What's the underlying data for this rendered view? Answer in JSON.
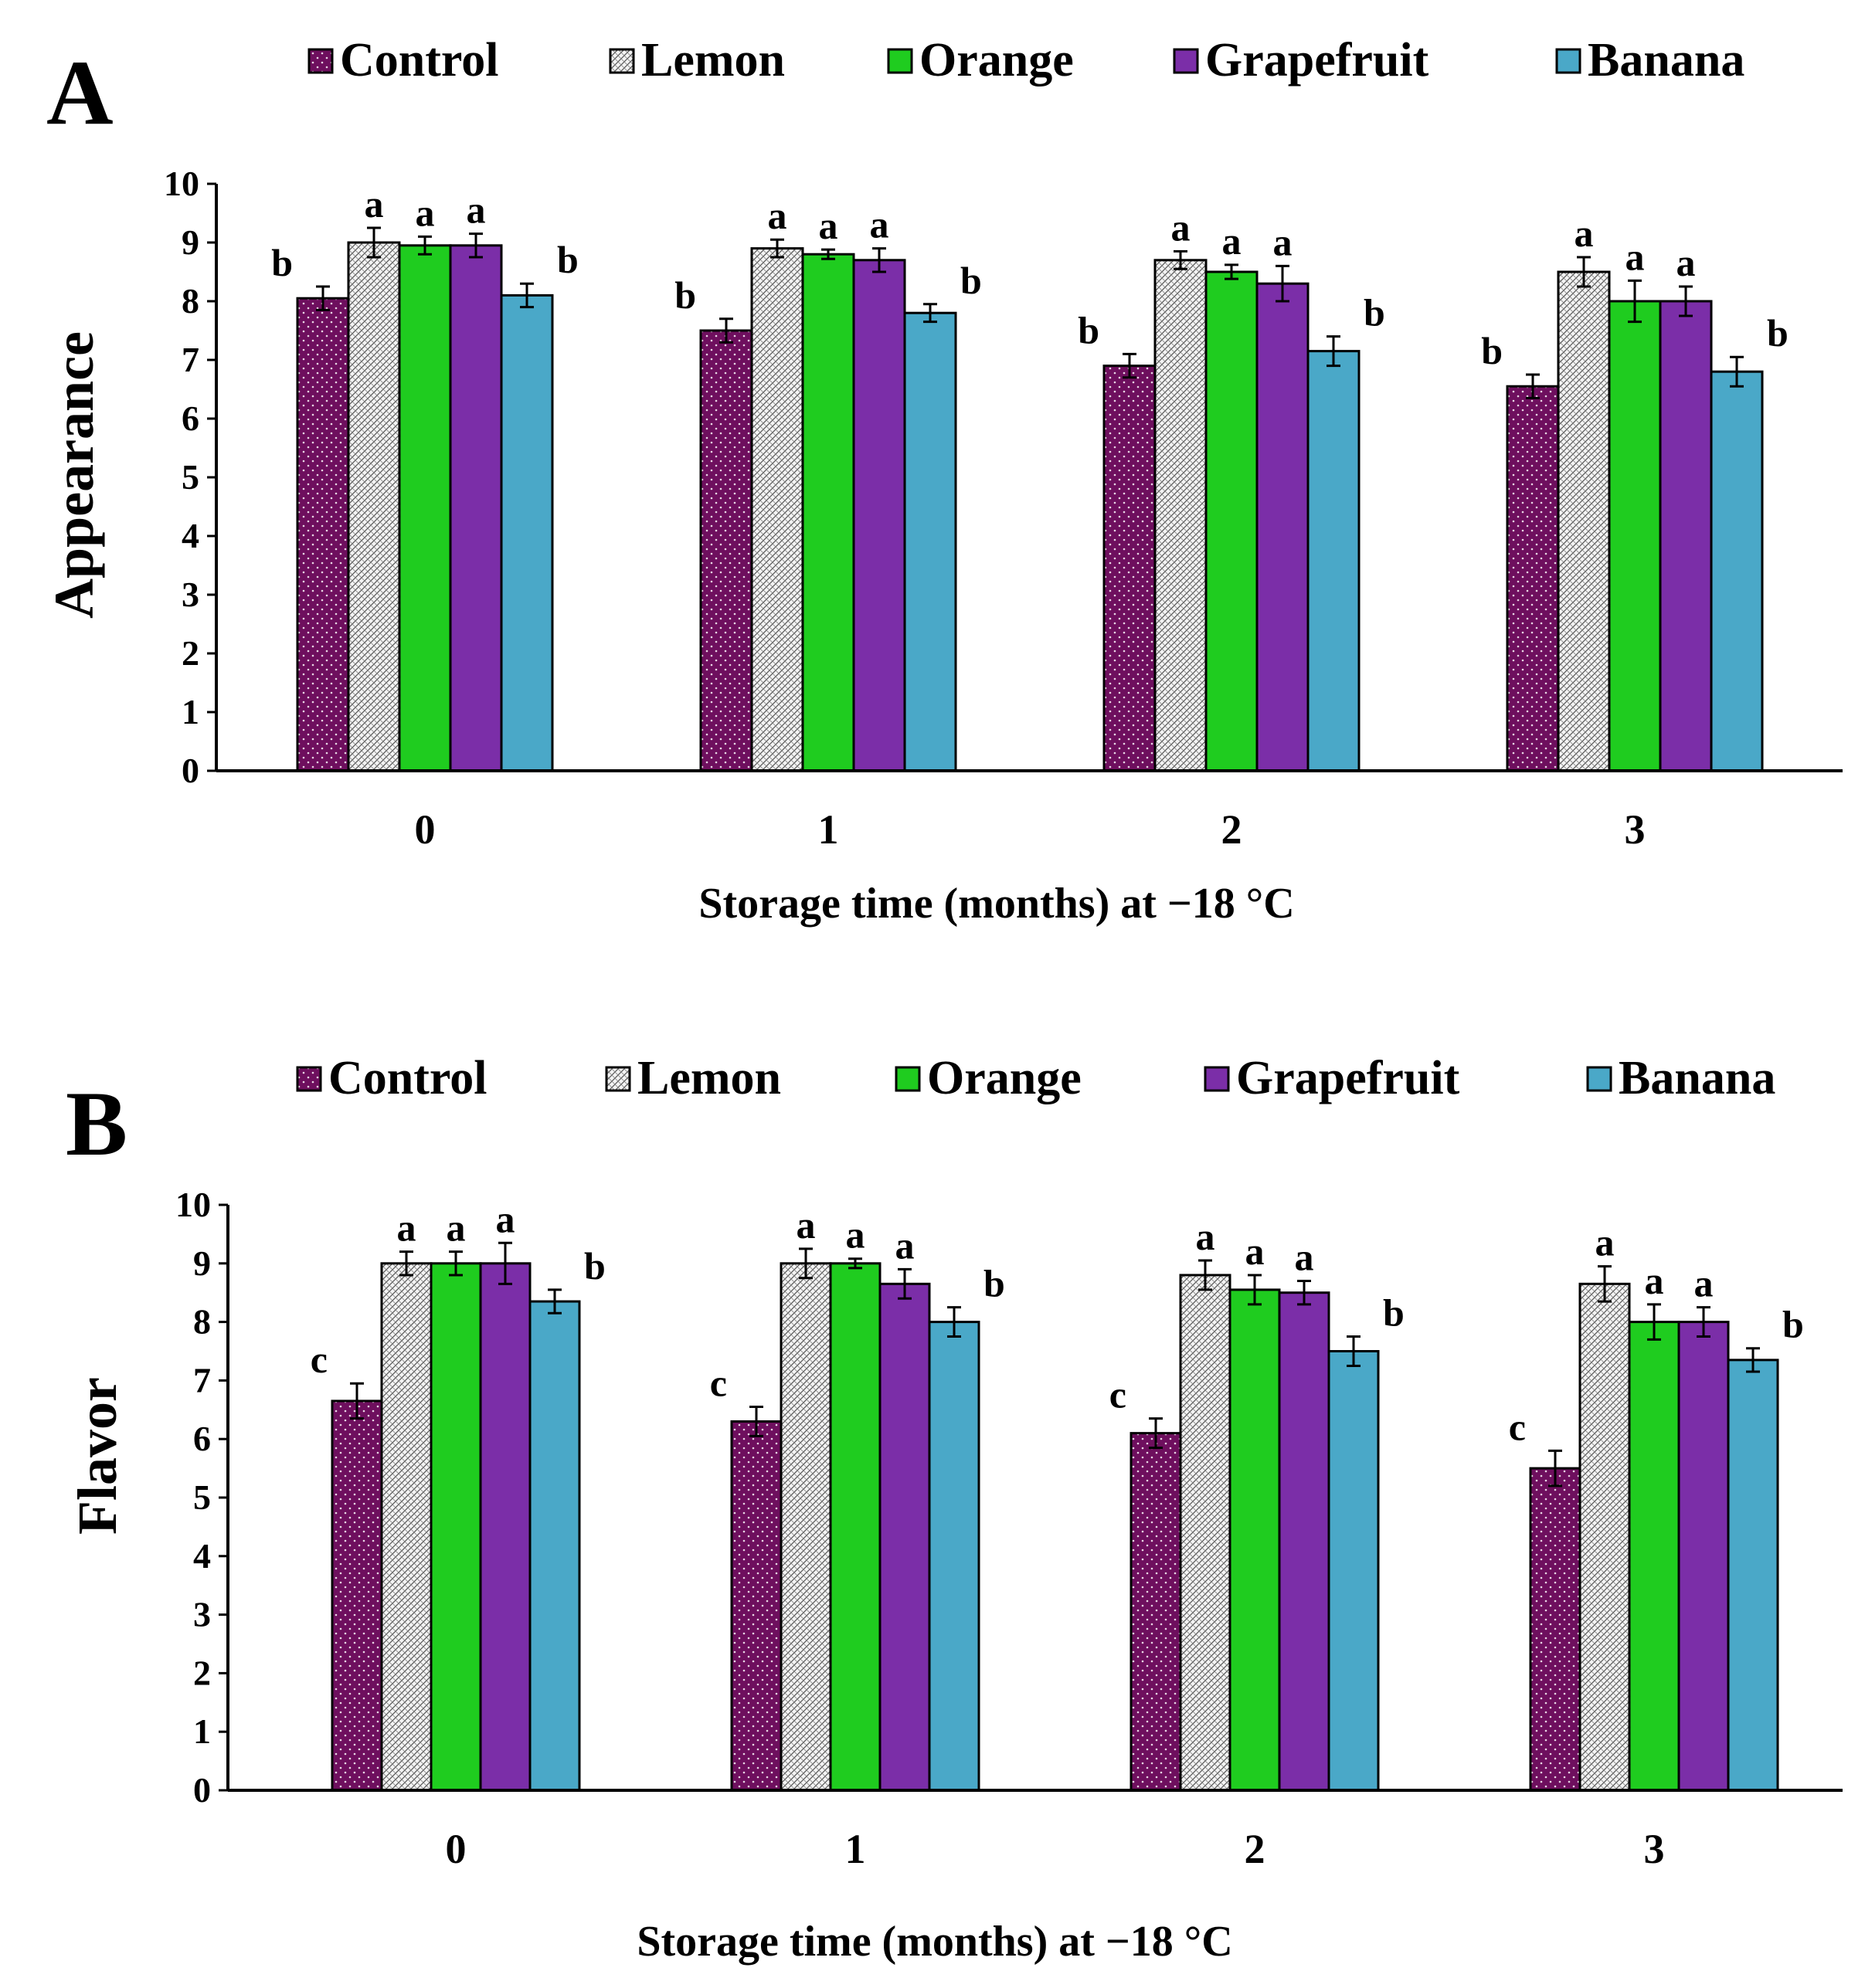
{
  "chart_data": [
    {
      "type": "bar",
      "panel_label": "A",
      "title": "",
      "ylabel": "Appearance",
      "xlabel": "Storage time (months) at −18 °C",
      "categories": [
        "0",
        "1",
        "2",
        "3"
      ],
      "ylim": [
        0,
        10
      ],
      "yticks": [
        "0",
        "1",
        "2",
        "3",
        "4",
        "5",
        "6",
        "7",
        "8",
        "9",
        "10"
      ],
      "legend_position": "top",
      "series": [
        {
          "name": "Control",
          "values": [
            8.05,
            7.5,
            6.9,
            6.55
          ],
          "errors": [
            0.2,
            0.2,
            0.2,
            0.2
          ],
          "letters": [
            "b",
            "b",
            "b",
            "b"
          ]
        },
        {
          "name": "Lemon",
          "values": [
            9.0,
            8.9,
            8.7,
            8.5
          ],
          "errors": [
            0.25,
            0.15,
            0.15,
            0.25
          ],
          "letters": [
            "a",
            "a",
            "a",
            "a"
          ]
        },
        {
          "name": "Orange",
          "values": [
            8.95,
            8.8,
            8.5,
            8.0
          ],
          "errors": [
            0.15,
            0.08,
            0.12,
            0.35
          ],
          "letters": [
            "a",
            "a",
            "a",
            "a"
          ]
        },
        {
          "name": "Grapefruit",
          "values": [
            8.95,
            8.7,
            8.3,
            8.0
          ],
          "errors": [
            0.2,
            0.2,
            0.3,
            0.25
          ],
          "letters": [
            "a",
            "a",
            "a",
            "a"
          ]
        },
        {
          "name": "Banana",
          "values": [
            8.1,
            7.8,
            7.15,
            6.8
          ],
          "errors": [
            0.2,
            0.15,
            0.25,
            0.25
          ],
          "letters": [
            "b",
            "b",
            "b",
            "b"
          ]
        }
      ]
    },
    {
      "type": "bar",
      "panel_label": "B",
      "title": "",
      "ylabel": "Flavor",
      "xlabel": "Storage time (months) at −18 °C",
      "categories": [
        "0",
        "1",
        "2",
        "3"
      ],
      "ylim": [
        0,
        10
      ],
      "yticks": [
        "0",
        "1",
        "2",
        "3",
        "4",
        "5",
        "6",
        "7",
        "8",
        "9",
        "10"
      ],
      "legend_position": "top",
      "series": [
        {
          "name": "Control",
          "values": [
            6.65,
            6.3,
            6.1,
            5.5
          ],
          "errors": [
            0.3,
            0.25,
            0.25,
            0.3
          ],
          "letters": [
            "c",
            "c",
            "c",
            "c"
          ]
        },
        {
          "name": "Lemon",
          "values": [
            9.0,
            9.0,
            8.8,
            8.65
          ],
          "errors": [
            0.2,
            0.25,
            0.25,
            0.3
          ],
          "letters": [
            "a",
            "a",
            "a",
            "a"
          ]
        },
        {
          "name": "Orange",
          "values": [
            9.0,
            9.0,
            8.55,
            8.0
          ],
          "errors": [
            0.2,
            0.08,
            0.25,
            0.3
          ],
          "letters": [
            "a",
            "a",
            "a",
            "a"
          ]
        },
        {
          "name": "Grapefruit",
          "values": [
            9.0,
            8.65,
            8.5,
            8.0
          ],
          "errors": [
            0.35,
            0.25,
            0.2,
            0.25
          ],
          "letters": [
            "a",
            "a",
            "a",
            "a"
          ]
        },
        {
          "name": "Banana",
          "values": [
            8.35,
            8.0,
            7.5,
            7.35
          ],
          "errors": [
            0.2,
            0.25,
            0.25,
            0.2
          ],
          "letters": [
            "b",
            "b",
            "b",
            "b"
          ]
        }
      ]
    }
  ],
  "colors": {
    "Control": "#6e0f5e",
    "Lemon": "#f2f2f2",
    "Orange": "#1fcc1f",
    "Grapefruit": "#7b2ea8",
    "Banana": "#4aa8c8"
  }
}
